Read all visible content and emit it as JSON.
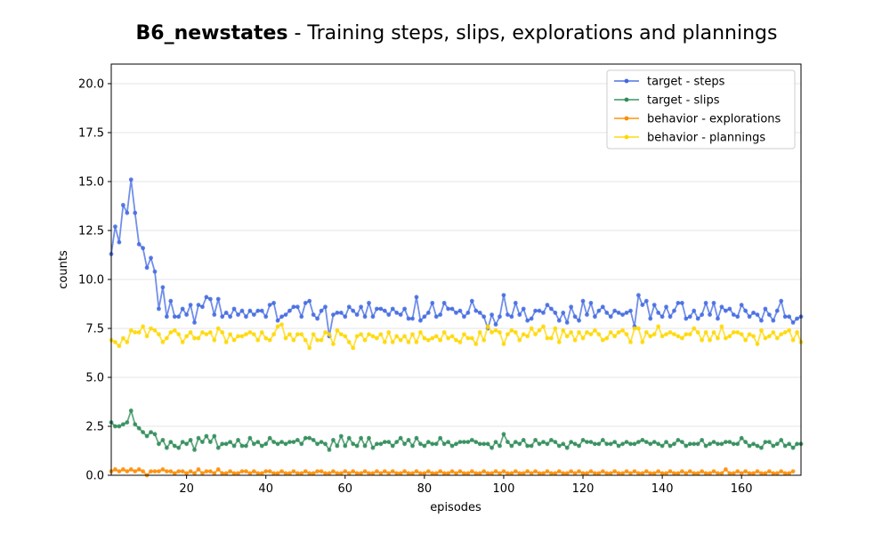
{
  "chart_data": {
    "type": "line",
    "title_bold": "B6_newstates",
    "title_rest": " - Training steps, slips, explorations and plannings",
    "xlabel": "episodes",
    "ylabel": "counts",
    "xlim": [
      1,
      175
    ],
    "ylim": [
      0,
      21
    ],
    "xticks": [
      "20",
      "40",
      "60",
      "80",
      "100",
      "120",
      "140",
      "160"
    ],
    "yticks": [
      "0.0",
      "2.5",
      "5.0",
      "7.5",
      "10.0",
      "12.5",
      "15.0",
      "17.5",
      "20.0"
    ],
    "grid": "horizontal",
    "legend_position": "top-right",
    "series": [
      {
        "name": "target - steps",
        "color": "#4169e1",
        "values": [
          11.3,
          12.7,
          11.9,
          13.8,
          13.4,
          15.1,
          13.4,
          11.8,
          11.6,
          10.6,
          11.1,
          10.4,
          8.5,
          9.6,
          8.1,
          8.9,
          8.1,
          8.1,
          8.5,
          8.2,
          8.7,
          7.8,
          8.7,
          8.6,
          9.1,
          9.0,
          8.2,
          9.0,
          8.1,
          8.3,
          8.1,
          8.5,
          8.2,
          8.4,
          8.1,
          8.4,
          8.2,
          8.4,
          8.4,
          8.1,
          8.7,
          8.8,
          7.9,
          8.1,
          8.2,
          8.4,
          8.6,
          8.6,
          8.1,
          8.8,
          8.9,
          8.2,
          8.0,
          8.4,
          8.6,
          7.1,
          8.2,
          8.3,
          8.3,
          8.1,
          8.6,
          8.4,
          8.2,
          8.6,
          8.1,
          8.8,
          8.1,
          8.5,
          8.5,
          8.4,
          8.2,
          8.5,
          8.3,
          8.2,
          8.5,
          8.0,
          8.0,
          9.1,
          7.9,
          8.1,
          8.3,
          8.8,
          8.1,
          8.2,
          8.8,
          8.5,
          8.5,
          8.3,
          8.4,
          8.1,
          8.3,
          8.9,
          8.4,
          8.3,
          8.1,
          7.5,
          8.2,
          7.7,
          8.1,
          9.2,
          8.2,
          8.1,
          8.8,
          8.2,
          8.5,
          7.9,
          8.0,
          8.4,
          8.4,
          8.3,
          8.7,
          8.5,
          8.3,
          7.9,
          8.3,
          7.8,
          8.6,
          8.1,
          7.9,
          8.9,
          8.2,
          8.8,
          8.1,
          8.4,
          8.6,
          8.3,
          8.1,
          8.4,
          8.3,
          8.2,
          8.3,
          8.4,
          7.6,
          9.2,
          8.7,
          8.9,
          8.0,
          8.7,
          8.3,
          8.1,
          8.6,
          8.1,
          8.4,
          8.8,
          8.8,
          8.0,
          8.1,
          8.4,
          8.0,
          8.2,
          8.8,
          8.2,
          8.8,
          8.0,
          8.6,
          8.4,
          8.5,
          8.2,
          8.1,
          8.7,
          8.4,
          8.1,
          8.3,
          8.2,
          7.9,
          8.5,
          8.2,
          7.9,
          8.4,
          8.9,
          8.1,
          8.1,
          7.8,
          8.0,
          8.1
        ]
      },
      {
        "name": "target - slips",
        "color": "#2e8b57",
        "values": [
          2.7,
          2.5,
          2.5,
          2.6,
          2.7,
          3.3,
          2.6,
          2.4,
          2.2,
          2.0,
          2.2,
          2.1,
          1.6,
          1.8,
          1.4,
          1.7,
          1.5,
          1.4,
          1.7,
          1.6,
          1.8,
          1.3,
          1.9,
          1.7,
          2.0,
          1.7,
          2.0,
          1.4,
          1.6,
          1.6,
          1.7,
          1.5,
          1.8,
          1.5,
          1.5,
          1.9,
          1.6,
          1.7,
          1.5,
          1.6,
          1.9,
          1.7,
          1.6,
          1.7,
          1.6,
          1.7,
          1.7,
          1.8,
          1.6,
          1.9,
          1.9,
          1.8,
          1.6,
          1.7,
          1.6,
          1.3,
          1.8,
          1.5,
          2.0,
          1.5,
          1.9,
          1.6,
          1.5,
          1.9,
          1.5,
          1.9,
          1.4,
          1.6,
          1.6,
          1.7,
          1.7,
          1.5,
          1.7,
          1.9,
          1.6,
          1.8,
          1.5,
          1.9,
          1.6,
          1.5,
          1.7,
          1.6,
          1.6,
          1.9,
          1.6,
          1.7,
          1.5,
          1.6,
          1.7,
          1.7,
          1.7,
          1.8,
          1.7,
          1.6,
          1.6,
          1.6,
          1.4,
          1.7,
          1.5,
          2.1,
          1.7,
          1.5,
          1.7,
          1.6,
          1.8,
          1.5,
          1.5,
          1.8,
          1.6,
          1.7,
          1.6,
          1.8,
          1.7,
          1.5,
          1.6,
          1.4,
          1.7,
          1.6,
          1.5,
          1.8,
          1.7,
          1.7,
          1.6,
          1.6,
          1.8,
          1.6,
          1.6,
          1.7,
          1.5,
          1.6,
          1.7,
          1.6,
          1.6,
          1.7,
          1.8,
          1.7,
          1.6,
          1.7,
          1.6,
          1.5,
          1.7,
          1.5,
          1.6,
          1.8,
          1.7,
          1.5,
          1.6,
          1.6,
          1.6,
          1.8,
          1.5,
          1.6,
          1.7,
          1.6,
          1.6,
          1.7,
          1.7,
          1.6,
          1.6,
          1.9,
          1.7,
          1.5,
          1.6,
          1.5,
          1.4,
          1.7,
          1.7,
          1.5,
          1.6,
          1.8,
          1.5,
          1.6,
          1.4,
          1.6,
          1.6
        ]
      },
      {
        "name": "behavior - explorations",
        "color": "#ff8c00",
        "values": [
          0.2,
          0.3,
          0.2,
          0.3,
          0.2,
          0.3,
          0.2,
          0.3,
          0.2,
          0.0,
          0.2,
          0.2,
          0.2,
          0.3,
          0.2,
          0.2,
          0.1,
          0.2,
          0.2,
          0.1,
          0.2,
          0.1,
          0.3,
          0.1,
          0.2,
          0.2,
          0.1,
          0.3,
          0.1,
          0.1,
          0.2,
          0.1,
          0.1,
          0.2,
          0.2,
          0.1,
          0.2,
          0.1,
          0.1,
          0.2,
          0.2,
          0.1,
          0.1,
          0.2,
          0.1,
          0.1,
          0.2,
          0.1,
          0.1,
          0.2,
          0.1,
          0.1,
          0.2,
          0.2,
          0.1,
          0.1,
          0.2,
          0.1,
          0.1,
          0.2,
          0.1,
          0.2,
          0.1,
          0.1,
          0.2,
          0.1,
          0.1,
          0.2,
          0.1,
          0.2,
          0.1,
          0.2,
          0.1,
          0.1,
          0.2,
          0.1,
          0.1,
          0.2,
          0.1,
          0.1,
          0.2,
          0.1,
          0.1,
          0.2,
          0.1,
          0.1,
          0.2,
          0.1,
          0.2,
          0.1,
          0.1,
          0.2,
          0.1,
          0.1,
          0.2,
          0.1,
          0.1,
          0.2,
          0.1,
          0.2,
          0.1,
          0.1,
          0.2,
          0.1,
          0.1,
          0.2,
          0.1,
          0.2,
          0.1,
          0.1,
          0.2,
          0.1,
          0.1,
          0.2,
          0.1,
          0.1,
          0.2,
          0.1,
          0.2,
          0.1,
          0.1,
          0.2,
          0.1,
          0.1,
          0.2,
          0.1,
          0.1,
          0.2,
          0.1,
          0.1,
          0.2,
          0.1,
          0.2,
          0.1,
          0.1,
          0.2,
          0.1,
          0.1,
          0.2,
          0.1,
          0.1,
          0.2,
          0.1,
          0.1,
          0.2,
          0.1,
          0.2,
          0.1,
          0.1,
          0.2,
          0.1,
          0.1,
          0.2,
          0.1,
          0.1,
          0.3,
          0.1,
          0.1,
          0.2,
          0.1,
          0.2,
          0.1,
          0.1,
          0.2,
          0.1,
          0.1,
          0.2,
          0.1,
          0.1,
          0.2,
          0.1,
          0.1,
          0.2
        ]
      },
      {
        "name": "behavior - plannings",
        "color": "#ffd700",
        "values": [
          6.9,
          6.8,
          6.6,
          7.0,
          6.8,
          7.4,
          7.3,
          7.3,
          7.6,
          7.1,
          7.5,
          7.4,
          7.2,
          6.8,
          7.0,
          7.3,
          7.4,
          7.2,
          6.8,
          7.1,
          7.3,
          7.0,
          7.0,
          7.3,
          7.2,
          7.3,
          6.9,
          7.5,
          7.3,
          6.8,
          7.2,
          6.9,
          7.1,
          7.1,
          7.2,
          7.3,
          7.2,
          6.9,
          7.3,
          7.0,
          6.9,
          7.2,
          7.6,
          7.7,
          7.0,
          7.2,
          6.9,
          7.2,
          7.2,
          6.9,
          6.5,
          7.2,
          6.9,
          6.9,
          7.3,
          7.2,
          6.7,
          7.4,
          7.2,
          7.1,
          6.8,
          6.5,
          7.1,
          7.2,
          6.9,
          7.2,
          7.1,
          7.0,
          7.2,
          6.8,
          7.3,
          6.8,
          7.1,
          6.9,
          7.1,
          6.8,
          7.2,
          6.8,
          7.3,
          7.0,
          6.9,
          7.0,
          7.1,
          6.9,
          7.3,
          7.0,
          7.1,
          6.9,
          6.8,
          7.2,
          7.0,
          7.0,
          6.7,
          7.3,
          6.9,
          7.6,
          7.3,
          7.4,
          7.3,
          6.7,
          7.2,
          7.4,
          7.3,
          6.9,
          7.2,
          7.1,
          7.5,
          7.2,
          7.4,
          7.6,
          7.0,
          7.0,
          7.5,
          6.8,
          7.4,
          7.1,
          7.3,
          6.9,
          7.3,
          7.0,
          7.3,
          7.2,
          7.4,
          7.2,
          6.9,
          7.0,
          7.3,
          7.1,
          7.3,
          7.4,
          7.2,
          6.8,
          7.5,
          7.5,
          6.8,
          7.3,
          7.1,
          7.2,
          7.6,
          7.1,
          7.2,
          7.3,
          7.2,
          7.1,
          7.0,
          7.2,
          7.2,
          7.5,
          7.3,
          6.9,
          7.3,
          6.9,
          7.3,
          7.0,
          7.6,
          7.0,
          7.1,
          7.3,
          7.3,
          7.2,
          6.9,
          7.2,
          7.1,
          6.7,
          7.4,
          7.0,
          7.1,
          7.3,
          7.0,
          7.2,
          7.3,
          7.4,
          6.9,
          7.3,
          6.8
        ]
      }
    ]
  }
}
